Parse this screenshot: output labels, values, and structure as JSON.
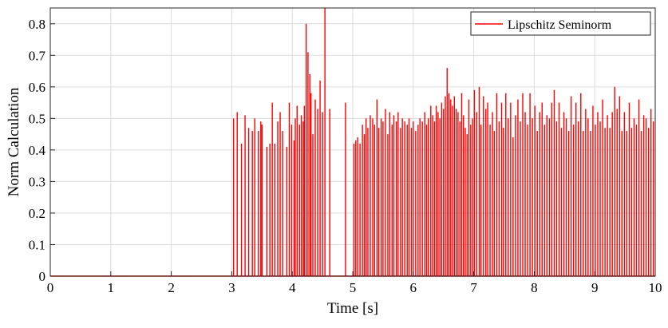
{
  "chart_data": {
    "type": "line",
    "xlabel": "Time [s]",
    "ylabel": "Norm Calculation",
    "xlim": [
      0,
      10
    ],
    "ylim": [
      0,
      0.85
    ],
    "grid": true,
    "legend_position": "top-right",
    "x_ticks": [
      "0",
      "1",
      "2",
      "3",
      "4",
      "5",
      "6",
      "7",
      "8",
      "9",
      "10"
    ],
    "y_ticks": [
      "0",
      "0.1",
      "0.2",
      "0.3",
      "0.4",
      "0.5",
      "0.6",
      "0.7",
      "0.8"
    ],
    "series": [
      {
        "name": "Lipschitz Seminorm",
        "color": "#ff0000",
        "baseline": 0,
        "spikes": [
          [
            3.03,
            0.5
          ],
          [
            3.09,
            0.52
          ],
          [
            3.16,
            0.42
          ],
          [
            3.22,
            0.51
          ],
          [
            3.28,
            0.47
          ],
          [
            3.34,
            0.46
          ],
          [
            3.38,
            0.5
          ],
          [
            3.44,
            0.46
          ],
          [
            3.48,
            0.49
          ],
          [
            3.5,
            0.48
          ],
          [
            3.58,
            0.41
          ],
          [
            3.63,
            0.42
          ],
          [
            3.67,
            0.55
          ],
          [
            3.71,
            0.42
          ],
          [
            3.76,
            0.49
          ],
          [
            3.8,
            0.52
          ],
          [
            3.84,
            0.46
          ],
          [
            3.91,
            0.41
          ],
          [
            3.95,
            0.55
          ],
          [
            3.99,
            0.48
          ],
          [
            4.03,
            0.43
          ],
          [
            4.05,
            0.5
          ],
          [
            4.08,
            0.54
          ],
          [
            4.12,
            0.48
          ],
          [
            4.15,
            0.51
          ],
          [
            4.18,
            0.49
          ],
          [
            4.2,
            0.54
          ],
          [
            4.23,
            0.8
          ],
          [
            4.26,
            0.71
          ],
          [
            4.29,
            0.64
          ],
          [
            4.31,
            0.58
          ],
          [
            4.34,
            0.45
          ],
          [
            4.38,
            0.56
          ],
          [
            4.42,
            0.53
          ],
          [
            4.46,
            0.62
          ],
          [
            4.5,
            0.52
          ],
          [
            4.54,
            0.85
          ],
          [
            4.62,
            0.53
          ],
          [
            4.88,
            0.55
          ],
          [
            5.02,
            0.42
          ],
          [
            5.05,
            0.43
          ],
          [
            5.08,
            0.44
          ],
          [
            5.12,
            0.42
          ],
          [
            5.16,
            0.48
          ],
          [
            5.19,
            0.45
          ],
          [
            5.22,
            0.5
          ],
          [
            5.25,
            0.47
          ],
          [
            5.29,
            0.51
          ],
          [
            5.33,
            0.5
          ],
          [
            5.36,
            0.48
          ],
          [
            5.4,
            0.56
          ],
          [
            5.43,
            0.47
          ],
          [
            5.47,
            0.5
          ],
          [
            5.5,
            0.49
          ],
          [
            5.54,
            0.53
          ],
          [
            5.58,
            0.45
          ],
          [
            5.61,
            0.52
          ],
          [
            5.65,
            0.48
          ],
          [
            5.68,
            0.51
          ],
          [
            5.72,
            0.49
          ],
          [
            5.75,
            0.52
          ],
          [
            5.79,
            0.47
          ],
          [
            5.82,
            0.5
          ],
          [
            5.86,
            0.49
          ],
          [
            5.9,
            0.48
          ],
          [
            5.93,
            0.5
          ],
          [
            5.97,
            0.47
          ],
          [
            6.0,
            0.49
          ],
          [
            6.04,
            0.46
          ],
          [
            6.08,
            0.48
          ],
          [
            6.11,
            0.5
          ],
          [
            6.15,
            0.49
          ],
          [
            6.19,
            0.52
          ],
          [
            6.22,
            0.48
          ],
          [
            6.25,
            0.5
          ],
          [
            6.29,
            0.54
          ],
          [
            6.32,
            0.51
          ],
          [
            6.35,
            0.49
          ],
          [
            6.38,
            0.54
          ],
          [
            6.41,
            0.52
          ],
          [
            6.44,
            0.5
          ],
          [
            6.47,
            0.55
          ],
          [
            6.5,
            0.53
          ],
          [
            6.53,
            0.57
          ],
          [
            6.56,
            0.66
          ],
          [
            6.59,
            0.58
          ],
          [
            6.62,
            0.56
          ],
          [
            6.65,
            0.54
          ],
          [
            6.68,
            0.57
          ],
          [
            6.71,
            0.53
          ],
          [
            6.74,
            0.52
          ],
          [
            6.77,
            0.49
          ],
          [
            6.8,
            0.58
          ],
          [
            6.83,
            0.51
          ],
          [
            6.86,
            0.47
          ],
          [
            6.89,
            0.45
          ],
          [
            6.92,
            0.56
          ],
          [
            6.95,
            0.48
          ],
          [
            6.98,
            0.5
          ],
          [
            7.01,
            0.59
          ],
          [
            7.05,
            0.52
          ],
          [
            7.09,
            0.6
          ],
          [
            7.12,
            0.48
          ],
          [
            7.16,
            0.57
          ],
          [
            7.2,
            0.53
          ],
          [
            7.23,
            0.55
          ],
          [
            7.27,
            0.48
          ],
          [
            7.31,
            0.52
          ],
          [
            7.34,
            0.46
          ],
          [
            7.38,
            0.58
          ],
          [
            7.42,
            0.49
          ],
          [
            7.46,
            0.55
          ],
          [
            7.49,
            0.47
          ],
          [
            7.53,
            0.58
          ],
          [
            7.57,
            0.5
          ],
          [
            7.61,
            0.55
          ],
          [
            7.65,
            0.44
          ],
          [
            7.69,
            0.51
          ],
          [
            7.73,
            0.56
          ],
          [
            7.77,
            0.49
          ],
          [
            7.81,
            0.58
          ],
          [
            7.85,
            0.52
          ],
          [
            7.89,
            0.48
          ],
          [
            7.93,
            0.58
          ],
          [
            7.97,
            0.5
          ],
          [
            8.01,
            0.54
          ],
          [
            8.05,
            0.46
          ],
          [
            8.09,
            0.52
          ],
          [
            8.13,
            0.55
          ],
          [
            8.17,
            0.48
          ],
          [
            8.21,
            0.51
          ],
          [
            8.25,
            0.5
          ],
          [
            8.29,
            0.55
          ],
          [
            8.33,
            0.59
          ],
          [
            8.37,
            0.49
          ],
          [
            8.41,
            0.55
          ],
          [
            8.45,
            0.47
          ],
          [
            8.49,
            0.52
          ],
          [
            8.53,
            0.5
          ],
          [
            8.57,
            0.46
          ],
          [
            8.61,
            0.57
          ],
          [
            8.65,
            0.48
          ],
          [
            8.69,
            0.55
          ],
          [
            8.73,
            0.49
          ],
          [
            8.77,
            0.58
          ],
          [
            8.81,
            0.46
          ],
          [
            8.85,
            0.53
          ],
          [
            8.89,
            0.5
          ],
          [
            8.93,
            0.46
          ],
          [
            8.97,
            0.54
          ],
          [
            9.01,
            0.48
          ],
          [
            9.05,
            0.52
          ],
          [
            9.09,
            0.49
          ],
          [
            9.13,
            0.56
          ],
          [
            9.17,
            0.47
          ],
          [
            9.21,
            0.51
          ],
          [
            9.25,
            0.47
          ],
          [
            9.29,
            0.52
          ],
          [
            9.33,
            0.6
          ],
          [
            9.37,
            0.53
          ],
          [
            9.41,
            0.57
          ],
          [
            9.45,
            0.46
          ],
          [
            9.49,
            0.52
          ],
          [
            9.53,
            0.46
          ],
          [
            9.57,
            0.55
          ],
          [
            9.61,
            0.47
          ],
          [
            9.65,
            0.5
          ],
          [
            9.69,
            0.48
          ],
          [
            9.73,
            0.56
          ],
          [
            9.77,
            0.46
          ],
          [
            9.81,
            0.51
          ],
          [
            9.85,
            0.5
          ],
          [
            9.89,
            0.47
          ],
          [
            9.93,
            0.53
          ],
          [
            9.97,
            0.49
          ]
        ]
      }
    ]
  }
}
